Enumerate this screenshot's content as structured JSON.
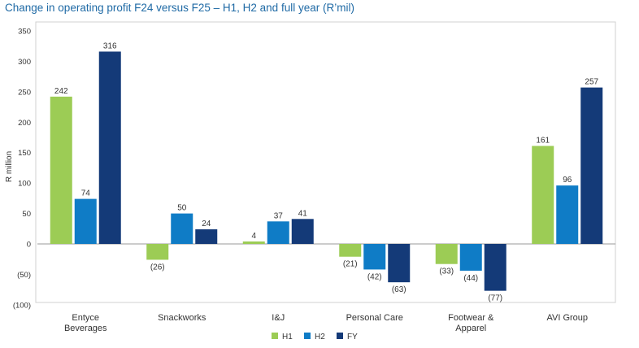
{
  "chart_data": {
    "type": "bar",
    "title": "Change in operating profit F24 versus F25 – H1, H2 and full year (R’mil)",
    "ylabel": "R million",
    "xlabel": "",
    "ylim": [
      -100,
      350
    ],
    "yticks": [
      -100,
      -50,
      0,
      50,
      100,
      150,
      200,
      250,
      300,
      350
    ],
    "ytick_labels": [
      "(100)",
      "(50)",
      "0",
      "50",
      "100",
      "150",
      "200",
      "250",
      "300",
      "350"
    ],
    "categories": [
      "Entyce Beverages",
      "Snackworks",
      "I&J",
      "Personal Care",
      "Footwear & Apparel",
      "AVI Group"
    ],
    "category_lines": [
      [
        "Entyce",
        "Beverages"
      ],
      [
        "Snackworks"
      ],
      [
        "I&J"
      ],
      [
        "Personal Care"
      ],
      [
        "Footwear &",
        "Apparel"
      ],
      [
        "AVI Group"
      ]
    ],
    "series": [
      {
        "name": "H1",
        "color": "#9ccc55",
        "values": [
          242,
          -26,
          4,
          -21,
          -33,
          161
        ],
        "labels": [
          "242",
          "(26)",
          "4",
          "(21)",
          "(33)",
          "161"
        ]
      },
      {
        "name": "H2",
        "color": "#0f7cc6",
        "values": [
          74,
          50,
          37,
          -42,
          -44,
          96
        ],
        "labels": [
          "74",
          "50",
          "37",
          "(42)",
          "(44)",
          "96"
        ]
      },
      {
        "name": "FY",
        "color": "#143a78",
        "values": [
          316,
          24,
          41,
          -63,
          -77,
          257
        ],
        "labels": [
          "316",
          "24",
          "41",
          "(63)",
          "(77)",
          "257"
        ]
      }
    ],
    "grid": false,
    "legend_position": "bottom-center"
  }
}
